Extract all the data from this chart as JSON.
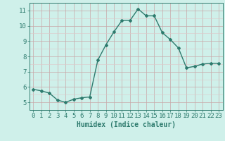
{
  "x": [
    0,
    1,
    2,
    3,
    4,
    5,
    6,
    7,
    8,
    9,
    10,
    11,
    12,
    13,
    14,
    15,
    16,
    17,
    18,
    19,
    20,
    21,
    22,
    23
  ],
  "y": [
    5.85,
    5.75,
    5.6,
    5.15,
    5.0,
    5.2,
    5.3,
    5.35,
    7.75,
    8.75,
    9.6,
    10.35,
    10.35,
    11.1,
    10.65,
    10.65,
    9.55,
    9.1,
    8.55,
    7.25,
    7.35,
    7.5,
    7.55,
    7.55
  ],
  "line_color": "#2e7b6e",
  "marker": "D",
  "markersize": 2,
  "linewidth": 1.0,
  "bg_color": "#cff0ea",
  "grid_color_major": "#c8a8a8",
  "grid_color_minor": "#dfc8c8",
  "xlabel": "Humidex (Indice chaleur)",
  "xlim": [
    -0.5,
    23.5
  ],
  "ylim": [
    4.5,
    11.5
  ],
  "yticks": [
    5,
    6,
    7,
    8,
    9,
    10,
    11
  ],
  "xticks": [
    0,
    1,
    2,
    3,
    4,
    5,
    6,
    7,
    8,
    9,
    10,
    11,
    12,
    13,
    14,
    15,
    16,
    17,
    18,
    19,
    20,
    21,
    22,
    23
  ],
  "axis_color": "#2e7b6e",
  "tick_color": "#2e7b6e",
  "label_color": "#2e7b6e",
  "xlabel_fontsize": 7,
  "tick_fontsize": 6.5
}
